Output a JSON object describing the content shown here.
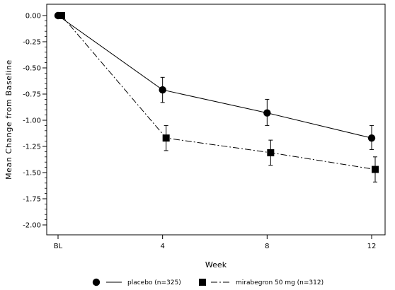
{
  "chart_data": {
    "type": "line",
    "title": "",
    "xlabel": "Week",
    "ylabel": "Mean Change from Baseline",
    "categories": [
      "BL",
      "4",
      "8",
      "12"
    ],
    "x": [
      0,
      4,
      8,
      12
    ],
    "ylim": [
      -2.0,
      0.0
    ],
    "yticks": [
      0.0,
      -0.25,
      -0.5,
      -0.75,
      -1.0,
      -1.25,
      -1.5,
      -1.75,
      -2.0
    ],
    "ytick_labels": [
      "0.00",
      "-0.25",
      "-0.50",
      "-0.75",
      "-1.00",
      "-1.25",
      "-1.50",
      "-1.75",
      "-2.00"
    ],
    "grid": false,
    "legend_position": "bottom",
    "series": [
      {
        "name": "placebo (n=325)",
        "marker": "circle",
        "line_style": "solid",
        "color": "#000000",
        "values": [
          0.0,
          -0.71,
          -0.93,
          -1.17
        ],
        "error_low": [
          0.0,
          -0.83,
          -1.05,
          -1.28
        ],
        "error_high": [
          0.0,
          -0.59,
          -0.8,
          -1.05
        ]
      },
      {
        "name": "mirabegron 50 mg (n=312)",
        "marker": "square",
        "line_style": "dash-dot",
        "color": "#000000",
        "values": [
          0.0,
          -1.17,
          -1.31,
          -1.47
        ],
        "error_low": [
          0.0,
          -1.29,
          -1.43,
          -1.59
        ],
        "error_high": [
          0.0,
          -1.05,
          -1.19,
          -1.35
        ]
      }
    ]
  }
}
